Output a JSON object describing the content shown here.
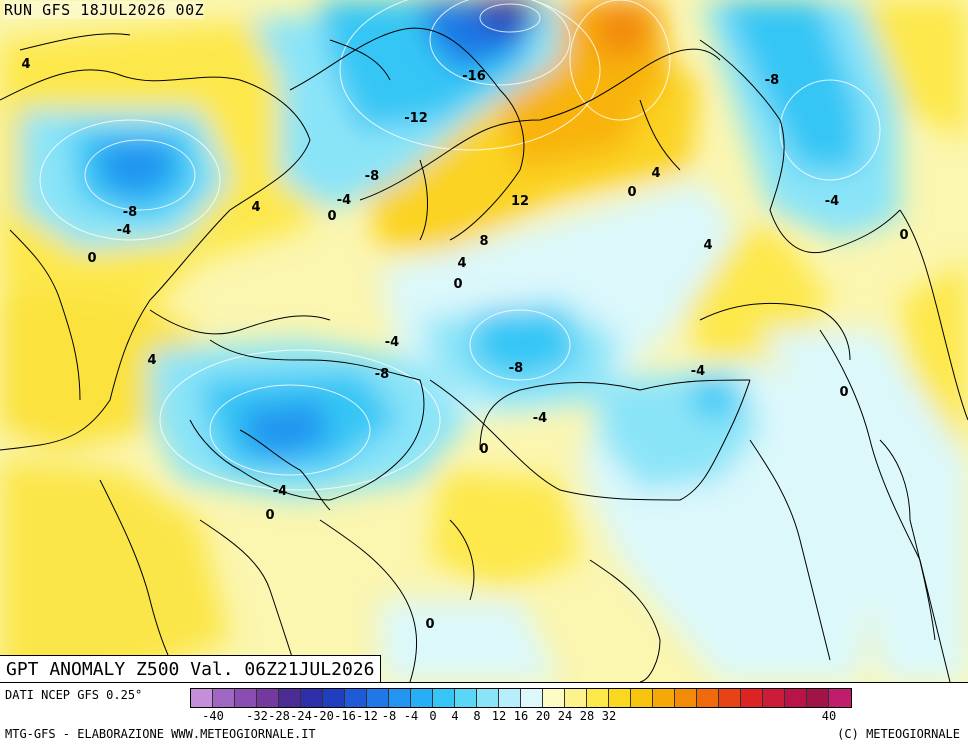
{
  "header": {
    "run_title": "RUN GFS 18JUL2026 00Z"
  },
  "map": {
    "title": "GPT ANOMALY Z500 Val. 06Z21JUL2026",
    "contour_labels": [
      {
        "text": "4"
      },
      {
        "text": "-8"
      },
      {
        "text": "-4"
      },
      {
        "text": "0"
      },
      {
        "text": "4"
      },
      {
        "text": "0"
      },
      {
        "text": "-4"
      },
      {
        "text": "-8"
      },
      {
        "text": "-12"
      },
      {
        "text": "-16"
      },
      {
        "text": "12"
      },
      {
        "text": "8"
      },
      {
        "text": "4"
      },
      {
        "text": "0"
      },
      {
        "text": "0"
      },
      {
        "text": "4"
      },
      {
        "text": "-8"
      },
      {
        "text": "-4"
      },
      {
        "text": "0"
      },
      {
        "text": "4"
      },
      {
        "text": "4"
      },
      {
        "text": "-4"
      },
      {
        "text": "-8"
      },
      {
        "text": "-8"
      },
      {
        "text": "-4"
      },
      {
        "text": "-4"
      },
      {
        "text": "0"
      },
      {
        "text": "0"
      },
      {
        "text": "-4"
      },
      {
        "text": "0"
      },
      {
        "text": "0"
      }
    ]
  },
  "legend": {
    "data_source": "DATI NCEP GFS 0.25°",
    "credits": "MTG-GFS - ELABORAZIONE WWW.METEOGIORNALE.IT",
    "copyright": "(C) METEOGIORNALE",
    "swatch_colors": [
      "#c48ed8",
      "#a066c4",
      "#8a4eb2",
      "#74389e",
      "#4a2c94",
      "#2e2ea8",
      "#1f3fc0",
      "#1e5bd6",
      "#1f78e6",
      "#2394f0",
      "#28aef5",
      "#35c6f5",
      "#5ad6f6",
      "#8ae4f8",
      "#b6eff9",
      "#dcf8fb",
      "#fcfcc4",
      "#fdf38c",
      "#fde84c",
      "#fbd820",
      "#f8c30c",
      "#f6a808",
      "#f38a08",
      "#ee6a0c",
      "#e64414",
      "#dc2424",
      "#cc1c3c",
      "#b81448",
      "#a01448",
      "#c01e6c"
    ],
    "tick_labels": [
      "-40",
      "-32",
      "-28",
      "-24",
      "-20",
      "-16",
      "-12",
      "-8",
      "-4",
      "0",
      "4",
      "8",
      "12",
      "16",
      "20",
      "24",
      "28",
      "32",
      "40"
    ]
  }
}
